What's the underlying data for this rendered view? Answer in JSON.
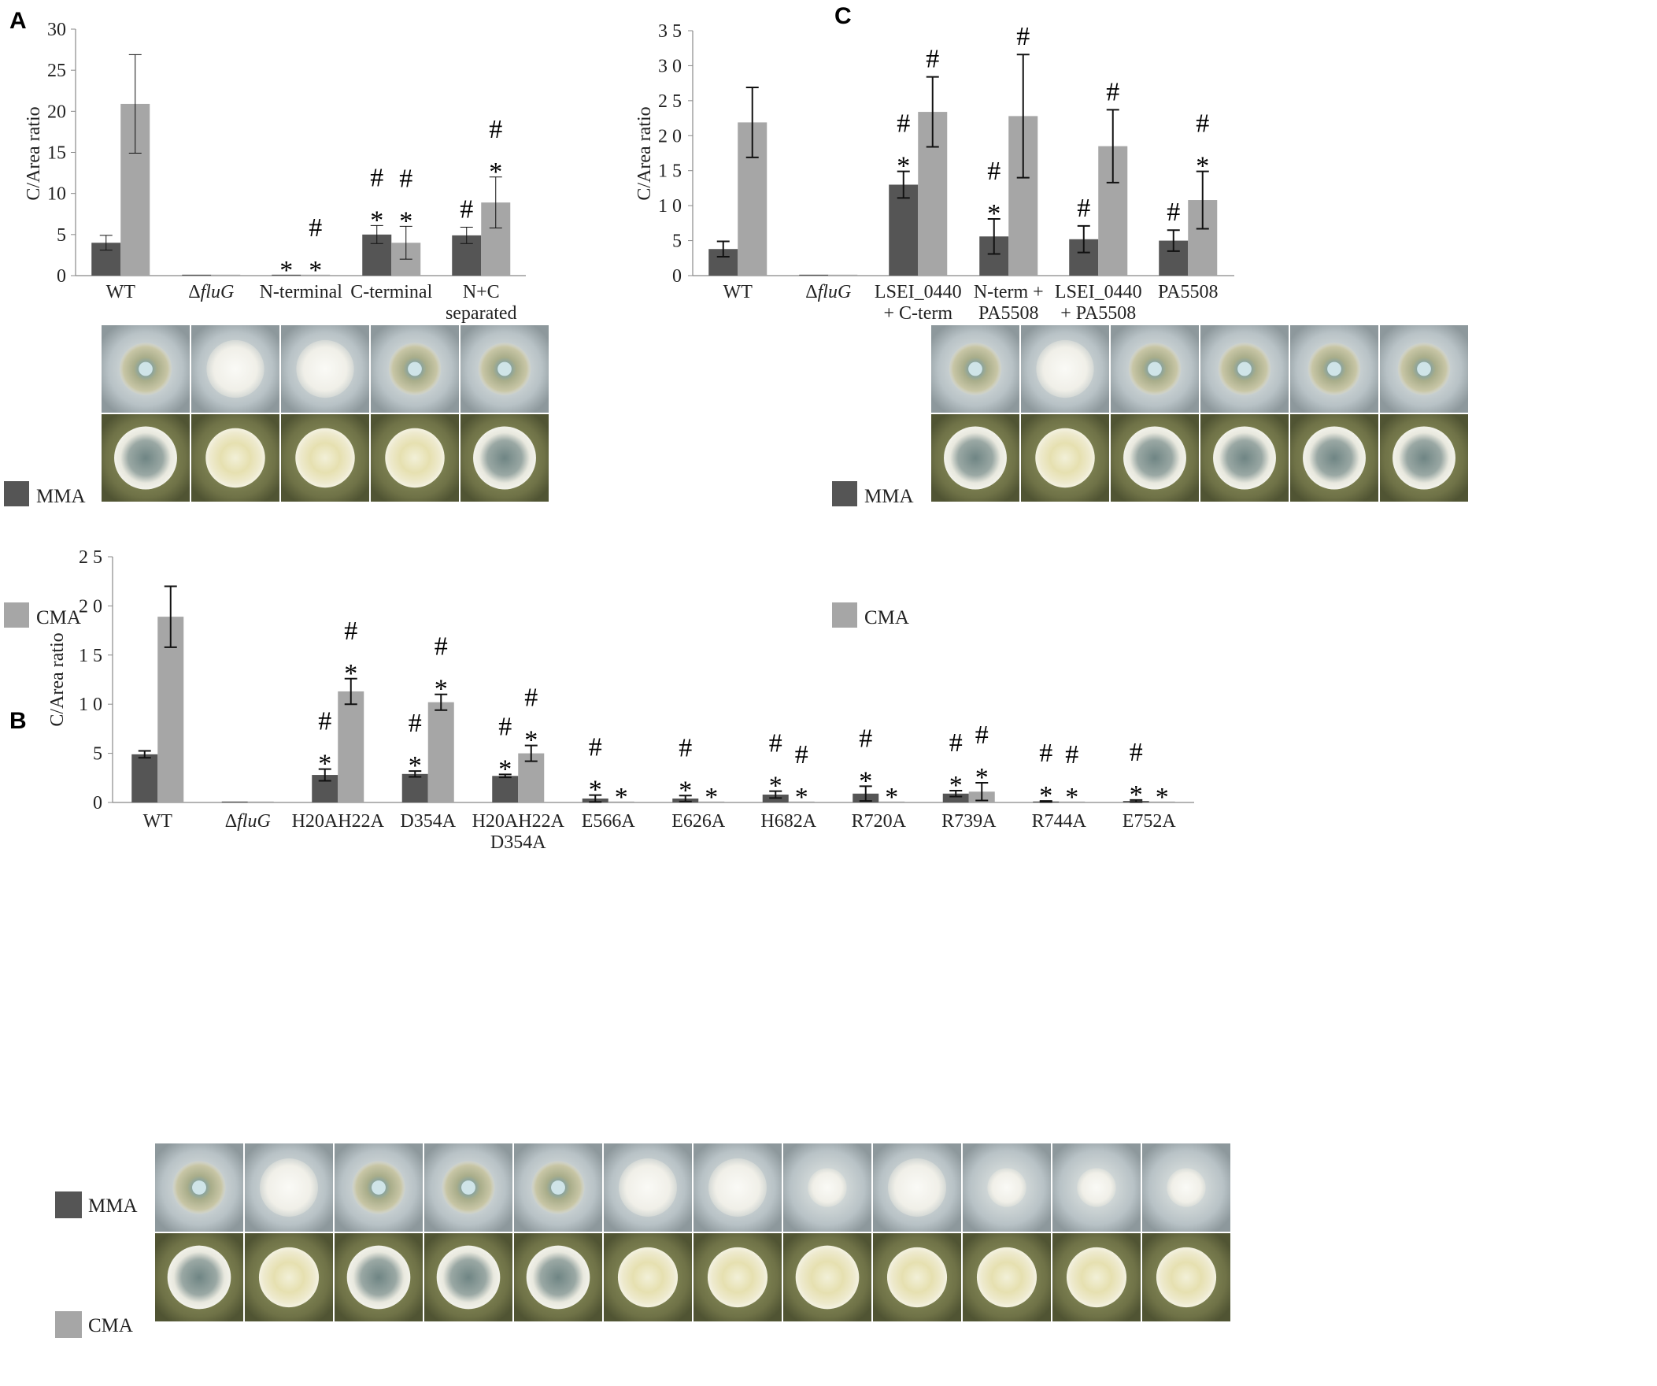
{
  "figure": {
    "colors": {
      "mma": "#555555",
      "cma": "#a6a6a6",
      "axis": "#888888",
      "plate_bg": "#cfd6d8"
    }
  },
  "chart_data": [
    {
      "panel": "A",
      "type": "bar",
      "ylabel": "C/Area ratio",
      "yticks": [
        "0",
        "5",
        "10",
        "15",
        "20",
        "25",
        "30"
      ],
      "ylim": [
        0,
        30
      ],
      "categories": [
        "WT",
        "ΔfluG",
        "N-terminal",
        "C-terminal",
        "N+C separated"
      ],
      "category_lines": [
        [
          "WT"
        ],
        [
          "Δ",
          "fluG"
        ],
        [
          "N-terminal"
        ],
        [
          "C-terminal"
        ],
        [
          "N+C",
          "separated"
        ]
      ],
      "series": [
        {
          "name": "MMA",
          "values": [
            4,
            0,
            0,
            5,
            4.9
          ],
          "errors": [
            0.9,
            0,
            0,
            1.1,
            1.0
          ],
          "marks": [
            "",
            "",
            "*",
            "#*",
            "#"
          ]
        },
        {
          "name": "CMA",
          "values": [
            20.9,
            0,
            0,
            4,
            8.9
          ],
          "errors": [
            6,
            0,
            0,
            2,
            3.1
          ],
          "marks": [
            "",
            "",
            "#*",
            "#*",
            "#*"
          ]
        }
      ],
      "legend": [
        "MMA",
        "CMA"
      ]
    },
    {
      "panel": "C",
      "type": "bar",
      "ylabel": "C/Area ratio",
      "yticks": [
        "0",
        "5",
        "1 0",
        "1 5",
        "2 0",
        "2 5",
        "3 0",
        "3 5"
      ],
      "ylim": [
        0,
        35
      ],
      "categories": [
        "WT",
        "ΔfluG",
        "LSEI_0440 + C-term",
        "N-term + PA5508",
        "LSEI_0440 + PA5508",
        "PA5508"
      ],
      "category_lines": [
        [
          "WT"
        ],
        [
          "Δ",
          "fluG"
        ],
        [
          "LSEI_0440",
          "+ C-term"
        ],
        [
          "N-term +",
          "PA5508"
        ],
        [
          "LSEI_0440",
          "+ PA5508"
        ],
        [
          "PA5508"
        ]
      ],
      "series": [
        {
          "name": "MMA",
          "values": [
            3.8,
            0,
            13,
            5.6,
            5.2,
            5
          ],
          "errors": [
            1.1,
            0,
            1.9,
            2.5,
            1.9,
            1.5
          ],
          "marks": [
            "",
            "",
            "#*",
            "#*",
            "#",
            "#"
          ]
        },
        {
          "name": "CMA",
          "values": [
            21.9,
            0,
            23.4,
            22.8,
            18.5,
            10.8
          ],
          "errors": [
            5,
            0,
            5,
            8.8,
            5.2,
            4.1
          ],
          "marks": [
            "",
            "",
            "#",
            "#",
            "#",
            "#*"
          ]
        }
      ],
      "legend": [
        "MMA",
        "CMA"
      ]
    },
    {
      "panel": "B",
      "type": "bar",
      "ylabel": "C/Area ratio",
      "yticks": [
        "0",
        "5",
        "1 0",
        "1 5",
        "2 0",
        "2 5"
      ],
      "ylim": [
        0,
        25
      ],
      "categories": [
        "WT",
        "ΔfluG",
        "H20AH22A",
        "D354A",
        "H20AH22A D354A",
        "E566A",
        "E626A",
        "H682A",
        "R720A",
        "R739A",
        "R744A",
        "E752A"
      ],
      "category_lines": [
        [
          "WT"
        ],
        [
          "Δ",
          "fluG"
        ],
        [
          "H20AH22A"
        ],
        [
          "D354A"
        ],
        [
          "H20AH22A",
          "D354A"
        ],
        [
          "E566A"
        ],
        [
          "E626A"
        ],
        [
          "H682A"
        ],
        [
          "R720A"
        ],
        [
          "R739A"
        ],
        [
          "R744A"
        ],
        [
          "E752A"
        ]
      ],
      "series": [
        {
          "name": "MMA",
          "values": [
            4.9,
            0.05,
            2.8,
            2.9,
            2.7,
            0.4,
            0.4,
            0.8,
            0.9,
            0.9,
            0.1,
            0.15
          ],
          "errors": [
            0.35,
            0,
            0.6,
            0.3,
            0.15,
            0.35,
            0.3,
            0.35,
            0.75,
            0.3,
            0.05,
            0.1
          ],
          "marks": [
            "",
            "",
            "#*",
            "#*",
            "#*",
            "#*",
            "#*",
            "#*",
            "#*",
            "#*",
            "#*",
            "#*"
          ]
        },
        {
          "name": "CMA",
          "values": [
            18.9,
            0.05,
            11.3,
            10.2,
            5,
            0,
            0,
            0,
            0,
            1.1,
            0,
            0
          ],
          "errors": [
            3.1,
            0,
            1.3,
            0.8,
            0.8,
            0,
            0,
            0,
            0,
            0.9,
            0,
            0
          ],
          "marks": [
            "",
            "",
            "#*",
            "#*",
            "#*",
            "*",
            "*",
            "#*",
            "*",
            "#*",
            "#*",
            "*"
          ]
        }
      ],
      "legend": [
        "MMA",
        "CMA"
      ]
    }
  ]
}
